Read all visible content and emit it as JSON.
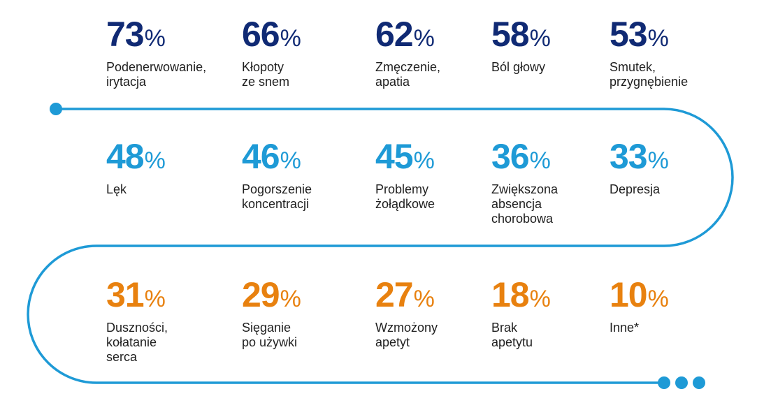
{
  "colors": {
    "row1": "#102a74",
    "row2": "#1e9ad6",
    "row3": "#e8810f",
    "path": "#1e9ad6"
  },
  "chart_data": {
    "type": "infographic",
    "unit": "%",
    "items": [
      {
        "value": 73,
        "label": "Podenerwowanie,\nirytacja",
        "row": 1
      },
      {
        "value": 66,
        "label": "Kłopoty\nze snem",
        "row": 1
      },
      {
        "value": 62,
        "label": "Zmęczenie,\napatia",
        "row": 1
      },
      {
        "value": 58,
        "label": "Ból głowy",
        "row": 1
      },
      {
        "value": 53,
        "label": "Smutek,\nprzygnębienie",
        "row": 1
      },
      {
        "value": 48,
        "label": "Lęk",
        "row": 2
      },
      {
        "value": 46,
        "label": "Pogorszenie\nkoncentracji",
        "row": 2
      },
      {
        "value": 45,
        "label": "Problemy\nżołądkowe",
        "row": 2
      },
      {
        "value": 36,
        "label": "Zwiększona\nabsencja\nchorobowa",
        "row": 2
      },
      {
        "value": 33,
        "label": "Depresja",
        "row": 2
      },
      {
        "value": 31,
        "label": "Duszności,\nkołatanie\nserca",
        "row": 3
      },
      {
        "value": 29,
        "label": "Sięganie\npo używki",
        "row": 3
      },
      {
        "value": 27,
        "label": "Wzmożony\napetyt",
        "row": 3
      },
      {
        "value": 18,
        "label": "Brak\napetytu",
        "row": 3
      },
      {
        "value": 10,
        "label": "Inne*",
        "row": 3
      }
    ]
  }
}
